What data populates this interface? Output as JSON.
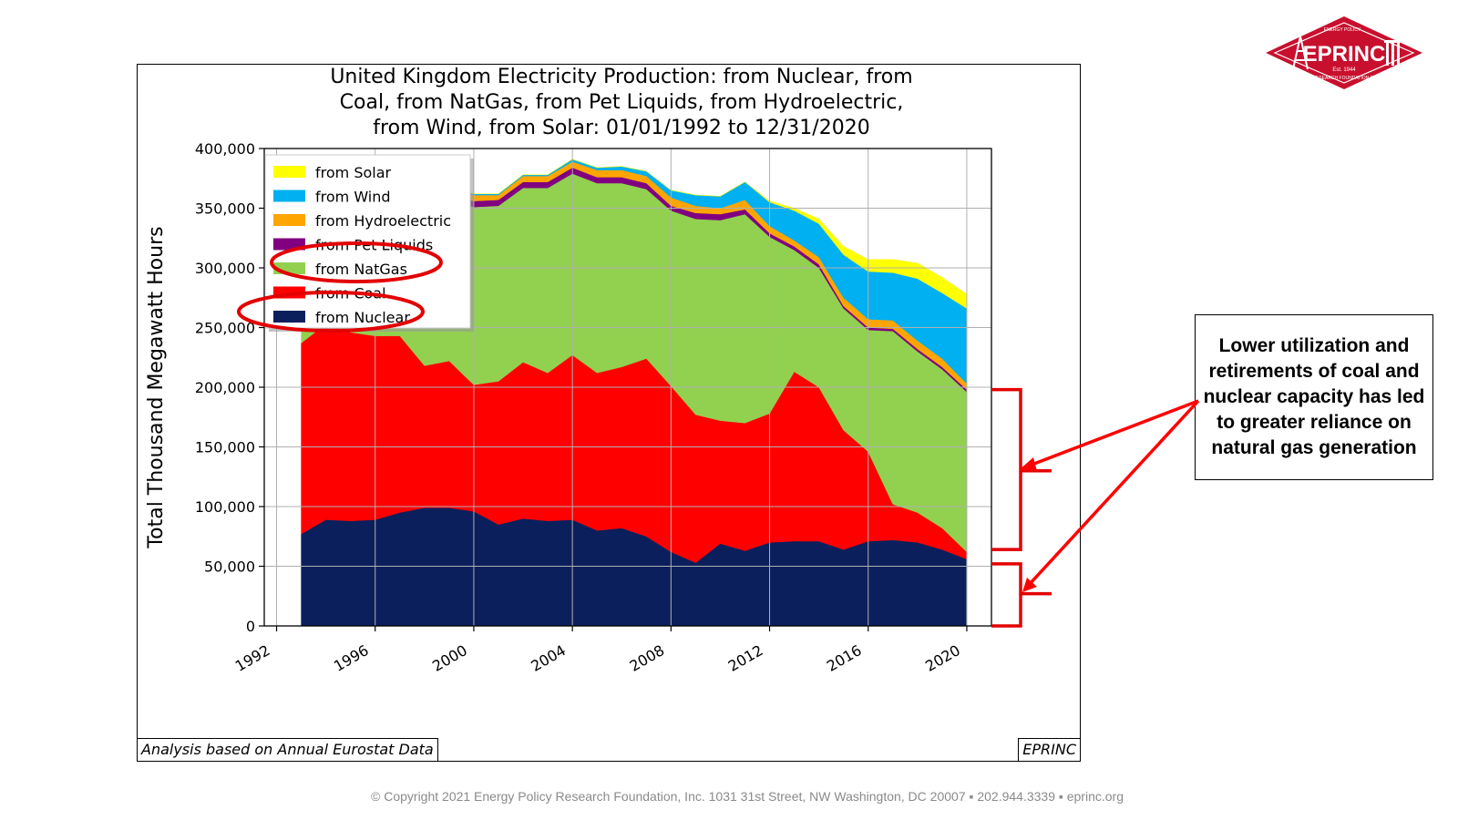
{
  "chart_data": {
    "type": "area",
    "title": "United Kingdom Electricity Production: from Nuclear, from Coal, from NatGas, from Pet Liquids, from Hydroelectric, from Wind, from Solar: 01/01/1992 to 12/31/2020",
    "title_lines": [
      "United Kingdom Electricity Production: from Nuclear, from",
      "Coal, from NatGas, from Pet Liquids, from Hydroelectric,",
      "from Wind, from Solar: 01/01/1992 to 12/31/2020"
    ],
    "ylabel": "Total Thousand Megawatt Hours",
    "xlabel": "",
    "xlim": [
      1991.5,
      2021
    ],
    "ylim": [
      0,
      400000
    ],
    "x_ticks": [
      1992,
      1996,
      2000,
      2004,
      2008,
      2012,
      2016,
      2020
    ],
    "x_tick_labels": [
      "1992",
      "1996",
      "2000",
      "2004",
      "2008",
      "2012",
      "2016",
      "2020"
    ],
    "y_ticks": [
      0,
      50000,
      100000,
      150000,
      200000,
      250000,
      300000,
      350000,
      400000
    ],
    "y_tick_labels": [
      "0",
      "50,000",
      "100,000",
      "150,000",
      "200,000",
      "250,000",
      "300,000",
      "350,000",
      "400,000"
    ],
    "grid": true,
    "stacked": true,
    "legend_position": "top-left",
    "x": [
      1993,
      1994,
      1995,
      1996,
      1997,
      1998,
      1999,
      2000,
      2001,
      2002,
      2003,
      2004,
      2005,
      2006,
      2007,
      2008,
      2009,
      2010,
      2011,
      2012,
      2013,
      2014,
      2015,
      2016,
      2017,
      2018,
      2019,
      2020
    ],
    "series": [
      {
        "name": "from Nuclear",
        "color": "#0b1f5c",
        "values": [
          77000,
          89000,
          88000,
          89000,
          95000,
          99000,
          99000,
          96000,
          85000,
          90000,
          88000,
          89000,
          80000,
          82000,
          75000,
          62000,
          53000,
          69000,
          63000,
          70000,
          71000,
          71000,
          64000,
          71000,
          72000,
          70000,
          64000,
          56000
        ]
      },
      {
        "name": "from Coal",
        "color": "#ff0000",
        "values": [
          160000,
          164000,
          158000,
          154000,
          148000,
          119000,
          123000,
          106000,
          120000,
          131000,
          124000,
          138000,
          132000,
          135000,
          149000,
          139000,
          124000,
          103000,
          107000,
          108000,
          142000,
          129000,
          100000,
          75000,
          30000,
          25000,
          18000,
          6000
        ]
      },
      {
        "name": "from NatGas",
        "color": "#92d050",
        "values": [
          63000,
          75000,
          86000,
          98000,
          110000,
          128000,
          135000,
          149000,
          147000,
          146000,
          155000,
          152000,
          159000,
          154000,
          142000,
          147000,
          164000,
          168000,
          175000,
          148000,
          102000,
          100000,
          102000,
          102000,
          145000,
          135000,
          133000,
          134000
        ]
      },
      {
        "name": "from Pet Liquids",
        "color": "#800080",
        "values": [
          8000,
          5000,
          4000,
          4000,
          3000,
          3000,
          3000,
          5000,
          5000,
          5000,
          5000,
          5000,
          5000,
          5000,
          5000,
          4000,
          5000,
          5000,
          4000,
          3000,
          3000,
          3000,
          2000,
          2000,
          2000,
          2000,
          2000,
          2000
        ]
      },
      {
        "name": "from Hydroelectric",
        "color": "#ffa500",
        "values": [
          5000,
          5000,
          6000,
          5000,
          5000,
          6000,
          6000,
          5000,
          4000,
          5000,
          5000,
          5000,
          6000,
          6000,
          6000,
          7000,
          6000,
          5000,
          8000,
          6000,
          5000,
          6000,
          7000,
          7000,
          7000,
          7000,
          7000,
          5000
        ]
      },
      {
        "name": "from Wind",
        "color": "#00b0f0",
        "values": [
          0,
          0,
          0,
          0,
          0,
          1000,
          1000,
          1000,
          1000,
          1000,
          1000,
          2000,
          2000,
          3000,
          4000,
          6000,
          9000,
          10000,
          15000,
          20000,
          25000,
          28000,
          36000,
          40000,
          40000,
          52000,
          55000,
          63000
        ]
      },
      {
        "name": "from Solar",
        "color": "#ffff00",
        "values": [
          0,
          0,
          0,
          0,
          0,
          0,
          0,
          0,
          0,
          0,
          0,
          0,
          0,
          0,
          0,
          0,
          0,
          0,
          0,
          1000,
          2000,
          4000,
          7000,
          10000,
          11000,
          13000,
          13000,
          12000
        ]
      }
    ]
  },
  "footer": {
    "left_note": "Analysis based on Annual Eurostat Data",
    "right_note": "EPRINC",
    "copyright": "© Copyright 2021 Energy Policy Research Foundation, Inc. 1031 31st Street, NW Washington, DC 20007 ▪ 202.944.3339 ▪ eprinc.org"
  },
  "callout": {
    "text": "Lower utilization and retirements of coal and nuclear capacity has led to greater reliance on natural gas generation",
    "arrow_color": "#ff0000"
  },
  "logo": {
    "name": "EPRINC",
    "est": "Est. 1944",
    "ring_top": "ENERGY POLICY",
    "ring_bottom": "RESEARCH FOUNDATION INC.",
    "color": "#c8102e"
  }
}
